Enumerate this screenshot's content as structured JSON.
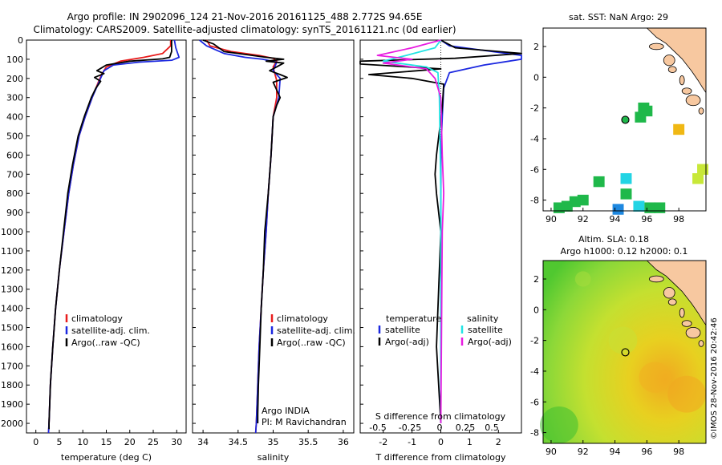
{
  "header": {
    "line1": "Argo profile: IN 2902096_124 21-Nov-2016 20161125_488 2.772S 94.65E",
    "line2": "Climatology: CARS2009. Satellite-adjusted climatology: synTS_20161121.nc (0d earlier)"
  },
  "side_label": "©IMOS 28-Nov-2016 20:42:46",
  "colors": {
    "climatology": "#e81c1c",
    "satellite": "#1c28e0",
    "argo": "#000000",
    "sat_salinity": "#22e4e4",
    "argo_adj_salinity": "#e81ce0",
    "land": "#f7c8a0"
  },
  "chart_data": [
    {
      "type": "line",
      "name": "temperature",
      "xlabel": "temperature (deg C)",
      "ylabel": "",
      "xlim": [
        -2,
        32
      ],
      "ylim": [
        2050,
        0
      ],
      "xticks": [
        "0",
        "5",
        "10",
        "15",
        "20",
        "25",
        "30"
      ],
      "yticks": [
        "0",
        "100",
        "200",
        "300",
        "400",
        "500",
        "600",
        "700",
        "800",
        "900",
        "1000",
        "1100",
        "1200",
        "1300",
        "1400",
        "1500",
        "1600",
        "1700",
        "1800",
        "1900",
        "2000"
      ],
      "legend": [
        "climatology",
        "satellite-adj. clim.",
        "Argo(..raw -QC)"
      ],
      "series": [
        {
          "name": "climatology",
          "color": "#e81c1c",
          "points": [
            [
              28.7,
              0
            ],
            [
              28.7,
              30
            ],
            [
              27,
              70
            ],
            [
              23,
              90
            ],
            [
              18,
              110
            ],
            [
              15,
              140
            ],
            [
              14,
              180
            ],
            [
              13.3,
              220
            ],
            [
              12,
              300
            ],
            [
              10.5,
              400
            ],
            [
              9.2,
              500
            ],
            [
              8,
              650
            ],
            [
              7,
              800
            ],
            [
              6,
              1000
            ],
            [
              5,
              1200
            ],
            [
              4.2,
              1400
            ],
            [
              3.6,
              1600
            ],
            [
              3.1,
              1800
            ],
            [
              2.8,
              2000
            ],
            [
              2.7,
              2050
            ]
          ]
        },
        {
          "name": "satellite-adj. clim.",
          "color": "#1c28e0",
          "points": [
            [
              29.5,
              0
            ],
            [
              29.8,
              40
            ],
            [
              30.5,
              90
            ],
            [
              29,
              105
            ],
            [
              22,
              115
            ],
            [
              16.5,
              130
            ],
            [
              14.5,
              160
            ],
            [
              13.6,
              210
            ],
            [
              12,
              300
            ],
            [
              10.5,
              400
            ],
            [
              9.2,
              500
            ],
            [
              8,
              650
            ],
            [
              7,
              800
            ],
            [
              6,
              1000
            ],
            [
              5,
              1200
            ],
            [
              4.2,
              1400
            ],
            [
              3.6,
              1600
            ],
            [
              3.1,
              1800
            ],
            [
              2.8,
              2000
            ],
            [
              2.7,
              2050
            ]
          ]
        },
        {
          "name": "Argo(..raw -QC)",
          "color": "#000000",
          "points": [
            [
              28.9,
              0
            ],
            [
              28.9,
              60
            ],
            [
              28.5,
              90
            ],
            [
              27,
              98
            ],
            [
              20,
              110
            ],
            [
              15,
              130
            ],
            [
              13,
              160
            ],
            [
              14.5,
              175
            ],
            [
              12.5,
              195
            ],
            [
              13.8,
              215
            ],
            [
              12.8,
              250
            ],
            [
              11.8,
              300
            ],
            [
              10.3,
              400
            ],
            [
              9,
              500
            ],
            [
              7.8,
              650
            ],
            [
              6.8,
              800
            ],
            [
              5.9,
              1000
            ],
            [
              5,
              1200
            ],
            [
              4.2,
              1400
            ],
            [
              3.6,
              1600
            ],
            [
              3.1,
              1800
            ],
            [
              2.8,
              2000
            ],
            [
              2.8,
              2030
            ]
          ]
        }
      ]
    },
    {
      "type": "line",
      "name": "salinity",
      "xlabel": "salinity",
      "xlim": [
        33.85,
        36.15
      ],
      "ylim": [
        2050,
        0
      ],
      "xticks": [
        "34",
        "34.5",
        "35",
        "35.5",
        "36"
      ],
      "legend": [
        "climatology",
        "satellite-adj. clim.",
        "Argo(..raw -QC)"
      ],
      "annotation": [
        "Argo INDIA",
        "PI: M Ravichandran"
      ],
      "series": [
        {
          "name": "climatology",
          "color": "#e81c1c",
          "points": [
            [
              34.05,
              0
            ],
            [
              34.1,
              30
            ],
            [
              34.4,
              60
            ],
            [
              34.8,
              80
            ],
            [
              35.0,
              95
            ],
            [
              35.05,
              110
            ],
            [
              35.0,
              140
            ],
            [
              35.02,
              170
            ],
            [
              35.05,
              210
            ],
            [
              35.05,
              300
            ],
            [
              35.0,
              400
            ],
            [
              34.97,
              600
            ],
            [
              34.93,
              800
            ],
            [
              34.9,
              1000
            ],
            [
              34.86,
              1200
            ],
            [
              34.83,
              1400
            ],
            [
              34.8,
              1600
            ],
            [
              34.78,
              1800
            ],
            [
              34.76,
              2000
            ],
            [
              34.75,
              2050
            ]
          ]
        },
        {
          "name": "satellite-adj. clim.",
          "color": "#1c28e0",
          "points": [
            [
              33.95,
              0
            ],
            [
              34.05,
              30
            ],
            [
              34.3,
              70
            ],
            [
              34.6,
              90
            ],
            [
              34.85,
              100
            ],
            [
              35.05,
              115
            ],
            [
              35.0,
              160
            ],
            [
              35.1,
              200
            ],
            [
              35.08,
              300
            ],
            [
              35.0,
              400
            ],
            [
              34.97,
              600
            ],
            [
              34.93,
              800
            ],
            [
              34.9,
              1000
            ],
            [
              34.86,
              1200
            ],
            [
              34.83,
              1400
            ],
            [
              34.8,
              1600
            ],
            [
              34.78,
              1800
            ],
            [
              34.76,
              2000
            ],
            [
              34.75,
              2050
            ]
          ]
        },
        {
          "name": "Argo(..raw -QC)",
          "color": "#000000",
          "points": [
            [
              34.0,
              0
            ],
            [
              34.15,
              20
            ],
            [
              34.3,
              60
            ],
            [
              34.6,
              75
            ],
            [
              34.9,
              90
            ],
            [
              35.15,
              100
            ],
            [
              34.9,
              110
            ],
            [
              35.15,
              120
            ],
            [
              34.95,
              160
            ],
            [
              35.1,
              180
            ],
            [
              35.2,
              195
            ],
            [
              35.0,
              220
            ],
            [
              35.05,
              260
            ],
            [
              35.1,
              300
            ],
            [
              35.05,
              340
            ],
            [
              35.0,
              400
            ],
            [
              34.97,
              600
            ],
            [
              34.93,
              800
            ],
            [
              34.88,
              1000
            ],
            [
              34.86,
              1200
            ],
            [
              34.83,
              1400
            ],
            [
              34.81,
              1600
            ],
            [
              34.79,
              1800
            ],
            [
              34.78,
              1950
            ],
            [
              34.78,
              2000
            ]
          ]
        }
      ]
    },
    {
      "type": "line",
      "name": "difference from climatology",
      "xlabel": "T difference from climatology",
      "x2label": "S difference from climatology",
      "xlim": [
        -2.8,
        2.8
      ],
      "ylim": [
        2050,
        0
      ],
      "xticks": [
        "-2",
        "-1",
        "0",
        "1",
        "2"
      ],
      "x2ticks": [
        "-0.5",
        "-0.25",
        "0",
        "0.25",
        "0.5"
      ],
      "legend_titles": [
        "temperature",
        "salinity"
      ],
      "legend": [
        "satellite",
        "Argo(-adj)",
        "satellite",
        "Argo(-adj)"
      ],
      "series": [
        {
          "name": "satellite",
          "group": "temperature",
          "color": "#1c28e0",
          "points": [
            [
              0,
              0
            ],
            [
              0.3,
              30
            ],
            [
              2.8,
              80
            ],
            [
              2.8,
              100
            ],
            [
              1.5,
              130
            ],
            [
              0.3,
              170
            ],
            [
              0.1,
              250
            ],
            [
              0.05,
              400
            ],
            [
              0,
              600
            ],
            [
              0,
              2000
            ]
          ]
        },
        {
          "name": "Argo(-adj)",
          "group": "temperature",
          "color": "#000000",
          "points": [
            [
              0,
              0
            ],
            [
              0.5,
              40
            ],
            [
              2.8,
              70
            ],
            [
              0.5,
              95
            ],
            [
              -2.8,
              110
            ],
            [
              -2.8,
              125
            ],
            [
              0,
              150
            ],
            [
              -2.5,
              180
            ],
            [
              -1,
              200
            ],
            [
              0.1,
              230
            ],
            [
              0.05,
              350
            ],
            [
              -0.15,
              600
            ],
            [
              -0.2,
              700
            ],
            [
              -0.15,
              800
            ],
            [
              0,
              1000
            ],
            [
              -0.1,
              1400
            ],
            [
              -0.15,
              1600
            ],
            [
              0,
              2000
            ]
          ]
        },
        {
          "name": "satellite",
          "group": "salinity",
          "color": "#22e4e4",
          "points": [
            [
              0,
              0
            ],
            [
              -0.2,
              40
            ],
            [
              -1.2,
              80
            ],
            [
              -2.0,
              110
            ],
            [
              -0.5,
              140
            ],
            [
              -0.1,
              170
            ],
            [
              -0.05,
              300
            ],
            [
              0,
              800
            ],
            [
              0,
              1200
            ],
            [
              0,
              2000
            ]
          ]
        },
        {
          "name": "Argo(-adj)",
          "group": "salinity",
          "color": "#e81ce0",
          "points": [
            [
              0,
              0
            ],
            [
              -0.5,
              20
            ],
            [
              -1.0,
              40
            ],
            [
              -2.2,
              80
            ],
            [
              -1.0,
              100
            ],
            [
              -2.0,
              120
            ],
            [
              -0.5,
              150
            ],
            [
              -0.2,
              200
            ],
            [
              0,
              300
            ],
            [
              0.05,
              600
            ],
            [
              0.1,
              800
            ],
            [
              0.05,
              1000
            ],
            [
              0,
              2000
            ]
          ]
        }
      ]
    },
    {
      "type": "scatter",
      "name": "sat. SST map",
      "title": "sat. SST: NaN  Argo: 29",
      "xlim": [
        89.5,
        99.7
      ],
      "ylim": [
        -8.7,
        3.2
      ],
      "xticks": [
        "90",
        "92",
        "94",
        "96",
        "98"
      ],
      "yticks": [
        "2",
        "0",
        "-2",
        "-4",
        "-6",
        "-8"
      ],
      "profile_position": [
        94.65,
        -2.772
      ],
      "cells": [
        {
          "x": 95.8,
          "y": -2.0,
          "color": "#1fb84a"
        },
        {
          "x": 96.0,
          "y": -2.2,
          "color": "#1fb84a"
        },
        {
          "x": 95.6,
          "y": -2.6,
          "color": "#1fb84a"
        },
        {
          "x": 98.0,
          "y": -3.4,
          "color": "#f0b814"
        },
        {
          "x": 93.0,
          "y": -6.8,
          "color": "#1fb84a"
        },
        {
          "x": 94.7,
          "y": -6.6,
          "color": "#22d4e4"
        },
        {
          "x": 94.7,
          "y": -7.6,
          "color": "#1fb84a"
        },
        {
          "x": 92.0,
          "y": -8.0,
          "color": "#1fb84a"
        },
        {
          "x": 91.5,
          "y": -8.1,
          "color": "#1fb84a"
        },
        {
          "x": 91.0,
          "y": -8.4,
          "color": "#1fb84a"
        },
        {
          "x": 90.5,
          "y": -8.5,
          "color": "#1fb84a"
        },
        {
          "x": 95.5,
          "y": -8.4,
          "color": "#22d4e4"
        },
        {
          "x": 96.2,
          "y": -8.5,
          "color": "#1fb84a"
        },
        {
          "x": 96.8,
          "y": -8.5,
          "color": "#1fb84a"
        },
        {
          "x": 94.2,
          "y": -8.6,
          "color": "#1e88e0"
        },
        {
          "x": 99.2,
          "y": -6.6,
          "color": "#c8e838"
        },
        {
          "x": 99.5,
          "y": -6.0,
          "color": "#c8e838"
        }
      ]
    },
    {
      "type": "heatmap",
      "name": "altimetry map",
      "title": "Altim. SLA: 0.18",
      "subtitle": "Argo h1000: 0.12 h2000: 0.1",
      "xlim": [
        89.5,
        99.7
      ],
      "ylim": [
        -8.7,
        3.2
      ],
      "xticks": [
        "90",
        "92",
        "94",
        "96",
        "98"
      ],
      "yticks": [
        "2",
        "0",
        "-2",
        "-4",
        "-6",
        "-8"
      ],
      "profile_position": [
        94.65,
        -2.772
      ]
    }
  ]
}
